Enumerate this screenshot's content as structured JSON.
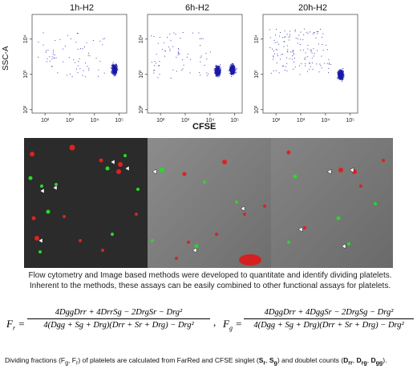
{
  "chart_data": [
    {
      "type": "scatter",
      "title": "1h-H2",
      "xscale": "log",
      "yscale": "log",
      "xlim": [
        30,
        200000
      ],
      "ylim": [
        80,
        50000
      ],
      "xticks": [
        "10²",
        "10³",
        "10⁴",
        "10⁵"
      ],
      "yticks": [
        "10²",
        "10³",
        "10⁴"
      ],
      "ylabel": "SSC-A",
      "xlabel": "",
      "clusters": [
        {
          "x_log_center": 4.8,
          "y_log_center": 3.15,
          "spread": "dense"
        },
        {
          "x_log_range": [
            1.7,
            4.5
          ],
          "y_log_range": [
            2.9,
            4.2
          ],
          "spread": "sparse"
        }
      ]
    },
    {
      "type": "scatter",
      "title": "6h-H2",
      "xscale": "log",
      "yscale": "log",
      "xlim": [
        30,
        200000
      ],
      "ylim": [
        80,
        50000
      ],
      "xticks": [
        "10²",
        "10³",
        "10⁴",
        "10⁵"
      ],
      "yticks": [
        "10²",
        "10³",
        "10⁴"
      ],
      "ylabel": "",
      "xlabel": "CFSE",
      "clusters": [
        {
          "x_log_center": 4.3,
          "y_log_center": 3.1,
          "spread": "dense"
        },
        {
          "x_log_center": 4.9,
          "y_log_center": 3.15,
          "spread": "dense"
        },
        {
          "x_log_range": [
            1.6,
            4.0
          ],
          "y_log_range": [
            2.9,
            4.2
          ],
          "spread": "sparse"
        }
      ]
    },
    {
      "type": "scatter",
      "title": "20h-H2",
      "xscale": "log",
      "yscale": "log",
      "xlim": [
        30,
        200000
      ],
      "ylim": [
        80,
        50000
      ],
      "xticks": [
        "10²",
        "10³",
        "10⁴",
        "10⁵"
      ],
      "yticks": [
        "10²",
        "10³",
        "10⁴"
      ],
      "ylabel": "",
      "xlabel": "",
      "clusters": [
        {
          "x_log_center": 4.6,
          "y_log_center": 3.0,
          "spread": "dense"
        },
        {
          "x_log_range": [
            1.7,
            4.2
          ],
          "y_log_range": [
            3.0,
            4.3
          ],
          "spread": "dense-sparse"
        }
      ]
    }
  ],
  "caption": {
    "line1": "Flow cytometry and Image based methods were developed to quantitate and identify dividing platelets.",
    "line2": "Inherent to the methods, these assays can be easily combined to other functional assays for platelets."
  },
  "equations": {
    "fr_lhs": "F",
    "fr_sub": "r",
    "fg_lhs": "F",
    "fg_sub": "g",
    "fr_num": "4DggDrr + 4DrrSg − 2DrgSr − Drg²",
    "fg_num": "4DggDrr + 4DggSr − 2DrgSg − Drg²",
    "den": "4(Dgg + Sg + Drg)(Drr + Sr + Drg) − Drg²",
    "comma": ","
  },
  "footnote": {
    "a": "Dividing fractions (F",
    "b": "g",
    "c": ", F",
    "d": "r",
    "e": ") of platelets are calculated from FarRed and CFSE singlet (",
    "f": "S",
    "g": "r",
    "h": ", ",
    "i": "S",
    "j": "g",
    "k": ") and doublet counts (",
    "l": "D",
    "m": "rr",
    "n": ", ",
    "o": "D",
    "p": "rg",
    "q": ", ",
    "r": "D",
    "s": "gg",
    "t": ")."
  },
  "colors": {
    "dots": "#1a1aa8",
    "red": "#e02020",
    "green": "#22dd22"
  }
}
